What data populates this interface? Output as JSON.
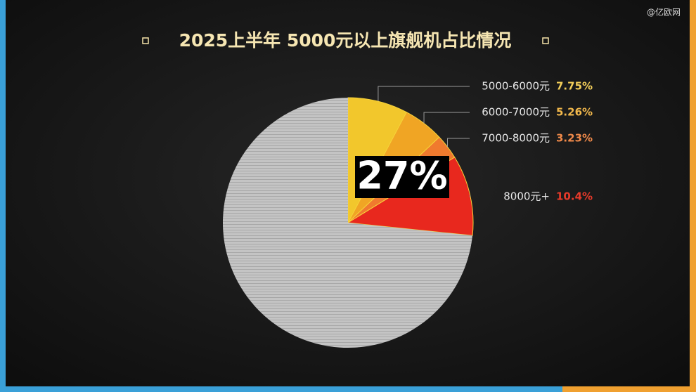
{
  "watermark": "@亿欧网",
  "chart_data": {
    "type": "pie",
    "title": "2025上半年 5000元以上旗舰机占比情况",
    "center_label": "27%",
    "categories": [
      "5000-6000元",
      "6000-7000元",
      "7000-8000元",
      "8000元+",
      null
    ],
    "values": [
      7.75,
      5.26,
      3.23,
      10.4,
      73.36
    ],
    "value_labels": [
      "7.75%",
      "5.26%",
      "3.23%",
      "10.4%",
      null
    ],
    "colors": [
      "#f2c72c",
      "#f0a524",
      "#f07a2e",
      "#e8281e",
      "#bdbdbd"
    ],
    "label_colors": [
      "#f5d05a",
      "#f3b94c",
      "#f08a4a",
      "#e83a2a",
      null
    ]
  }
}
